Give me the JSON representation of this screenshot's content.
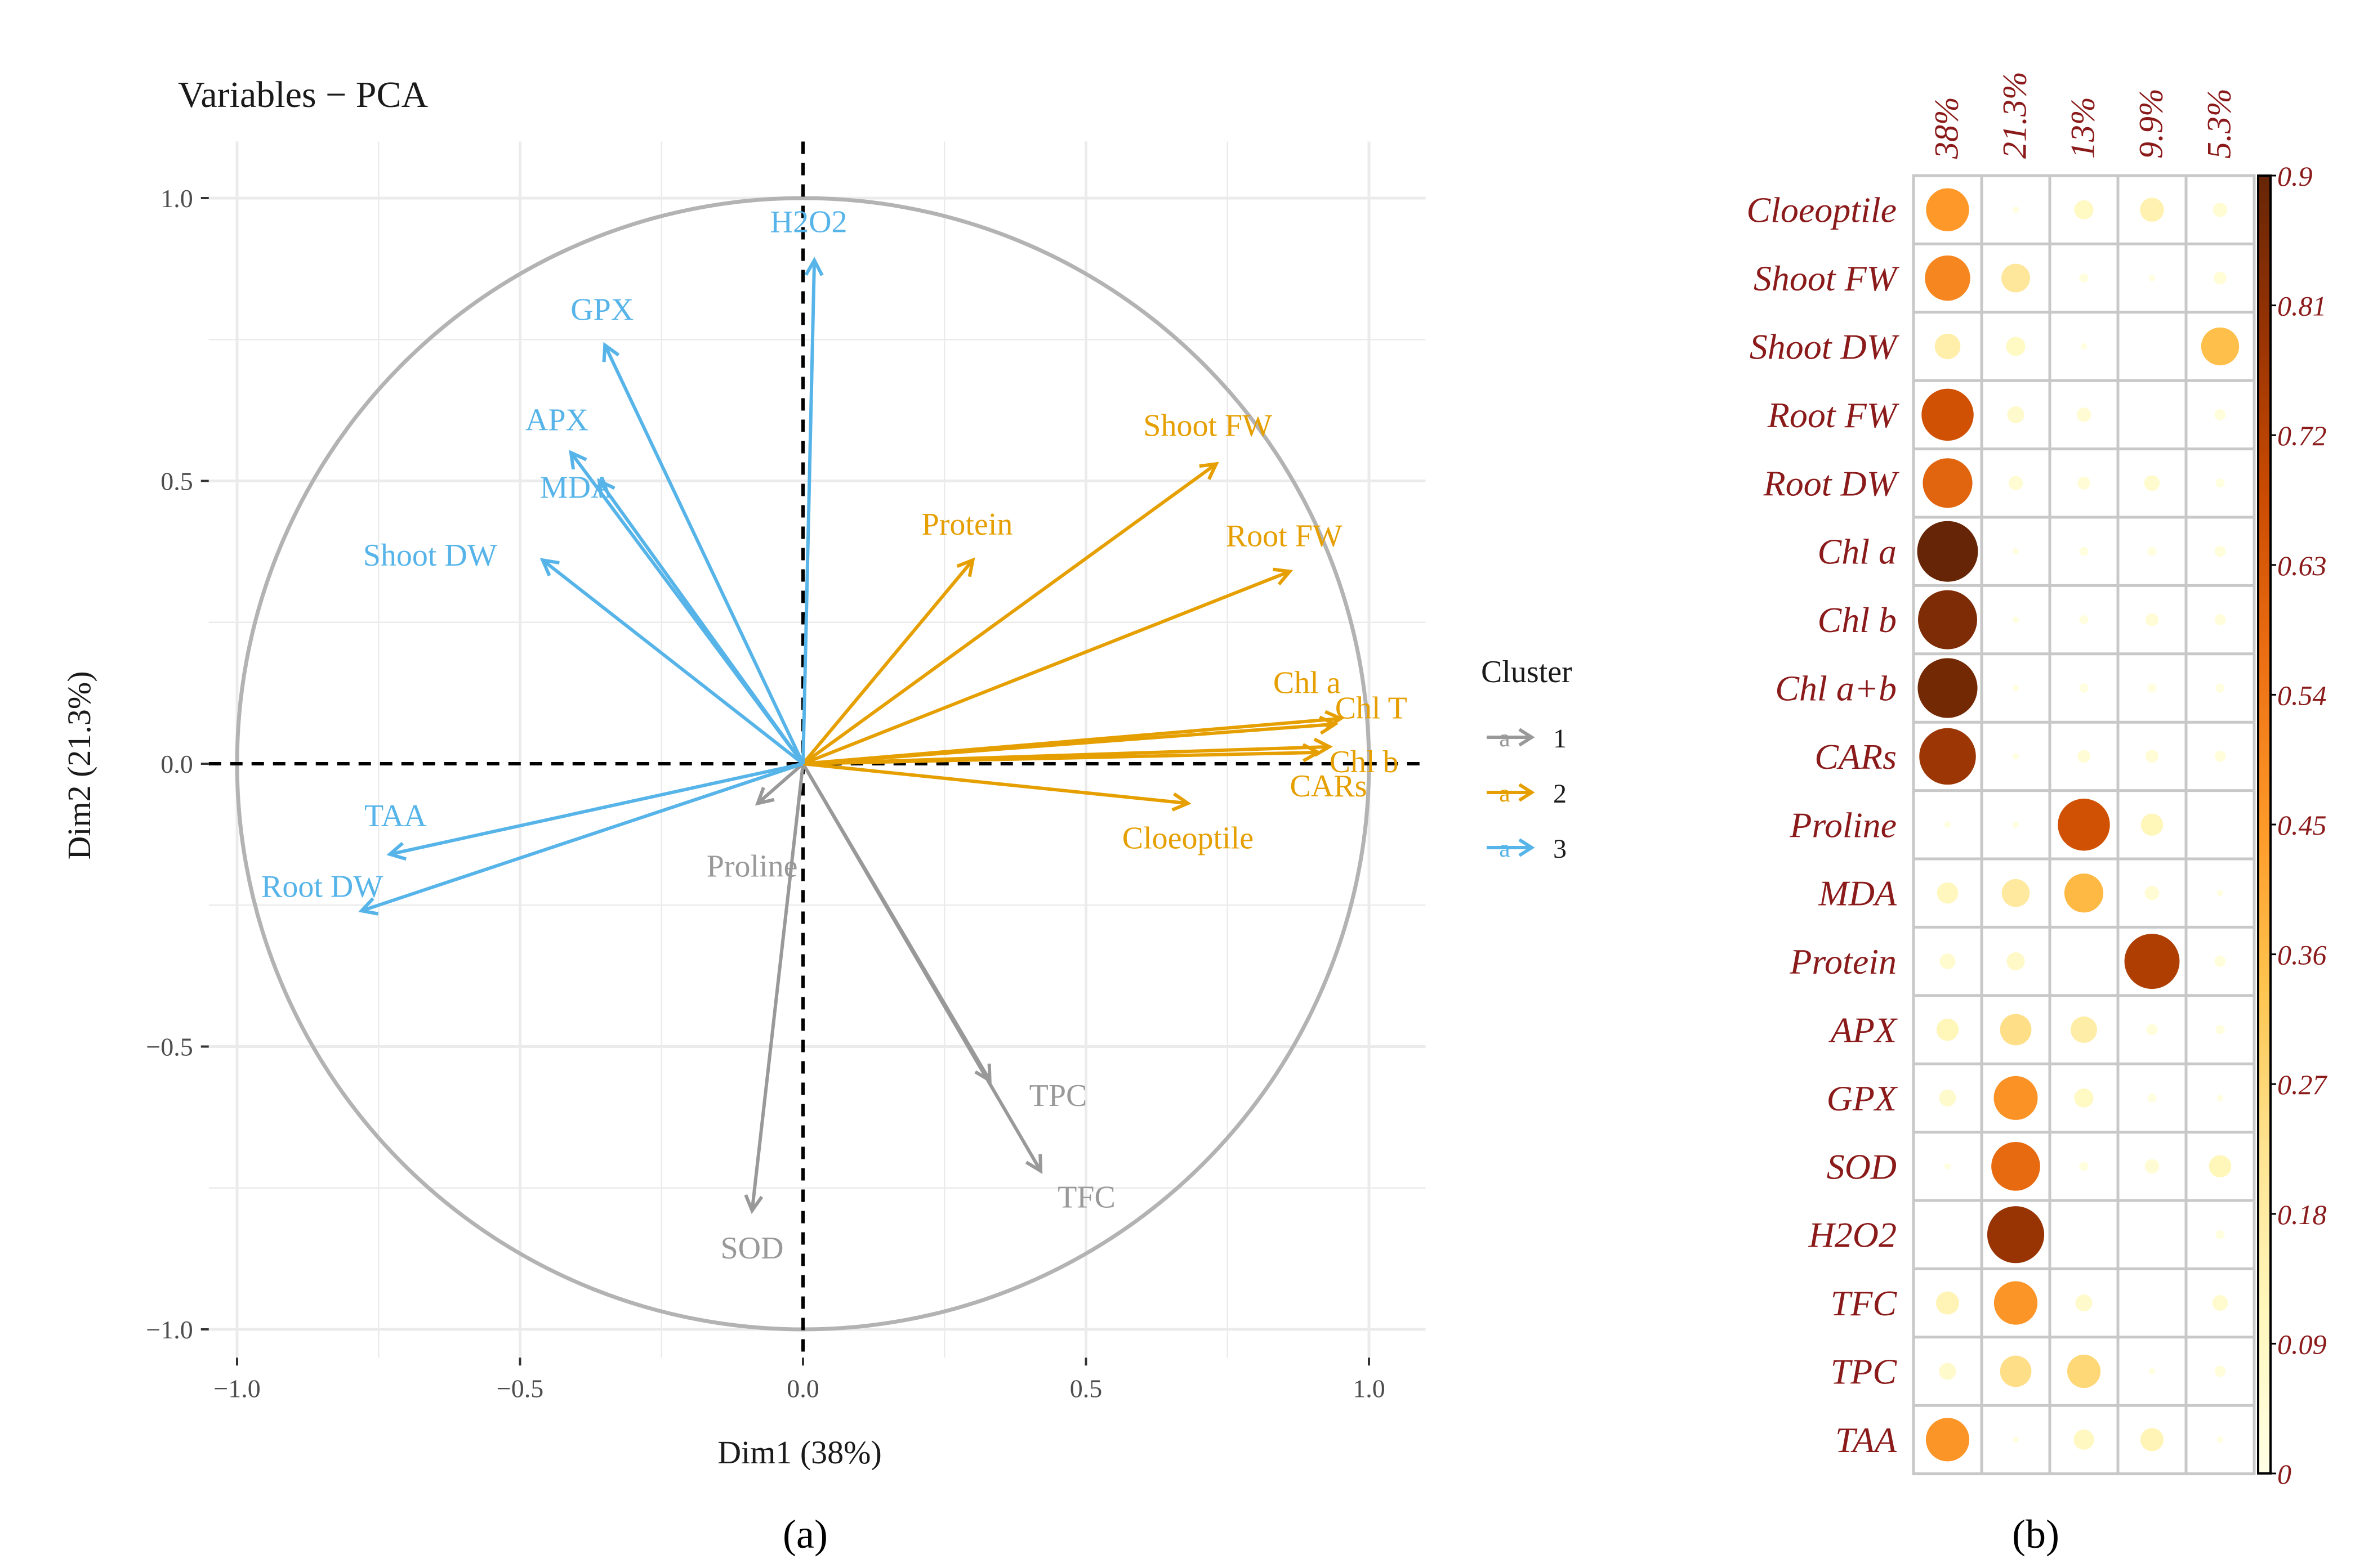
{
  "panel_labels": {
    "a": "(a)",
    "b": "(b)"
  },
  "chart_data": [
    {
      "type": "scatter",
      "subtype": "pca-variable-correlation-circle",
      "title": "Variables − PCA",
      "xlabel": "Dim1 (38%)",
      "ylabel": "Dim2 (21.3%)",
      "xlim": [
        -1.05,
        1.1
      ],
      "ylim": [
        -1.05,
        1.1
      ],
      "xticks": [
        {
          "value": -1.0,
          "label": "−1.0"
        },
        {
          "value": -0.5,
          "label": "−0.5"
        },
        {
          "value": 0.0,
          "label": "0.0"
        },
        {
          "value": 0.5,
          "label": "0.5"
        },
        {
          "value": 1.0,
          "label": "1.0"
        }
      ],
      "yticks": [
        {
          "value": 1.0,
          "label": "1.0"
        },
        {
          "value": 0.5,
          "label": "0.5"
        },
        {
          "value": 0.0,
          "label": "0.0"
        },
        {
          "value": -0.5,
          "label": "−0.5"
        },
        {
          "value": -1.0,
          "label": "−1.0"
        }
      ],
      "grid": true,
      "legend": {
        "title": "Cluster",
        "position": "right",
        "glyph": "a",
        "entries": [
          {
            "label": "1",
            "color": "#999999"
          },
          {
            "label": "2",
            "color": "#E69F00"
          },
          {
            "label": "3",
            "color": "#56B4E9"
          }
        ]
      },
      "series": [
        {
          "name": "1",
          "color": "#999999",
          "points": [
            {
              "label": "Proline",
              "x": -0.08,
              "y": -0.07
            },
            {
              "label": "SOD",
              "x": -0.09,
              "y": -0.79
            },
            {
              "label": "TPC",
              "x": 0.33,
              "y": -0.56
            },
            {
              "label": "TFC",
              "x": 0.42,
              "y": -0.72
            }
          ]
        },
        {
          "name": "2",
          "color": "#E69F00",
          "points": [
            {
              "label": "Shoot FW",
              "x": 0.73,
              "y": 0.53
            },
            {
              "label": "Protein",
              "x": 0.3,
              "y": 0.36
            },
            {
              "label": "Root FW",
              "x": 0.86,
              "y": 0.34
            },
            {
              "label": "Chl a",
              "x": 0.95,
              "y": 0.08
            },
            {
              "label": "Chl T",
              "x": 0.94,
              "y": 0.07
            },
            {
              "label": "Chl b",
              "x": 0.93,
              "y": 0.03
            },
            {
              "label": "CARs",
              "x": 0.91,
              "y": 0.02
            },
            {
              "label": "Cloeoptile",
              "x": 0.68,
              "y": -0.07
            }
          ]
        },
        {
          "name": "3",
          "color": "#56B4E9",
          "points": [
            {
              "label": "H2O2",
              "x": 0.02,
              "y": 0.89
            },
            {
              "label": "GPX",
              "x": -0.35,
              "y": 0.74
            },
            {
              "label": "APX",
              "x": -0.41,
              "y": 0.55
            },
            {
              "label": "MDA",
              "x": -0.36,
              "y": 0.5
            },
            {
              "label": "Shoot DW",
              "x": -0.46,
              "y": 0.36
            },
            {
              "label": "TAA",
              "x": -0.73,
              "y": -0.16
            },
            {
              "label": "Root DW",
              "x": -0.78,
              "y": -0.26
            }
          ]
        }
      ]
    },
    {
      "type": "heatmap",
      "subtype": "bubble-correlation-plot",
      "columns": [
        "38%",
        "21.3%",
        "13%",
        "9.9%",
        "5.3%"
      ],
      "rows": [
        "Cloeoptile",
        "Shoot FW",
        "Shoot DW",
        "Root FW",
        "Root DW",
        "Chl a",
        "Chl b",
        "Chl a+b",
        "CARs",
        "Proline",
        "MDA",
        "Protein",
        "APX",
        "GPX",
        "SOD",
        "H2O2",
        "TFC",
        "TPC",
        "TAA"
      ],
      "values": [
        [
          0.45,
          0.01,
          0.09,
          0.14,
          0.05
        ],
        [
          0.5,
          0.2,
          0.02,
          0.01,
          0.04
        ],
        [
          0.16,
          0.09,
          0.01,
          0.0,
          0.35
        ],
        [
          0.66,
          0.07,
          0.05,
          0.0,
          0.03
        ],
        [
          0.6,
          0.05,
          0.04,
          0.06,
          0.02
        ],
        [
          0.9,
          0.01,
          0.02,
          0.02,
          0.03
        ],
        [
          0.85,
          0.01,
          0.02,
          0.04,
          0.03
        ],
        [
          0.87,
          0.01,
          0.02,
          0.02,
          0.02
        ],
        [
          0.78,
          0.01,
          0.04,
          0.04,
          0.03
        ],
        [
          0.01,
          0.01,
          0.66,
          0.12,
          0.0
        ],
        [
          0.11,
          0.19,
          0.37,
          0.05,
          0.01
        ],
        [
          0.06,
          0.08,
          0.0,
          0.74,
          0.03
        ],
        [
          0.12,
          0.24,
          0.17,
          0.03,
          0.02
        ],
        [
          0.07,
          0.47,
          0.09,
          0.02,
          0.01
        ],
        [
          0.01,
          0.58,
          0.02,
          0.05,
          0.12
        ],
        [
          0.0,
          0.79,
          0.0,
          0.0,
          0.02
        ],
        [
          0.13,
          0.46,
          0.07,
          0.0,
          0.06
        ],
        [
          0.07,
          0.24,
          0.27,
          0.01,
          0.03
        ],
        [
          0.46,
          0.01,
          0.1,
          0.13,
          0.01
        ]
      ],
      "colorbar": {
        "min": 0,
        "max": 0.9,
        "ticks": [
          "0.9",
          "0.81",
          "0.72",
          "0.63",
          "0.54",
          "0.45",
          "0.36",
          "0.27",
          "0.18",
          "0.09",
          "0"
        ],
        "colors": [
          "#FFFFE5",
          "#FFF7BC",
          "#FEE391",
          "#FEC44F",
          "#FE9929",
          "#EC7014",
          "#CC4C02",
          "#993404",
          "#662506"
        ]
      },
      "label_color": "#8B1A1A"
    }
  ]
}
